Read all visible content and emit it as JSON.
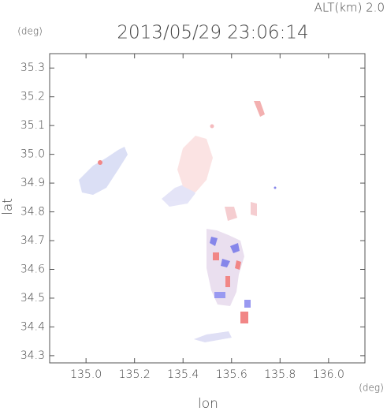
{
  "chart_data": {
    "type": "map",
    "title": "2013/05/29 23:06:14",
    "altitude_label": "ALT(km) 2.0",
    "y_unit": "(deg)",
    "x_unit": "(deg)",
    "xlabel": "lon",
    "ylabel": "lat",
    "xlim": [
      134.85,
      136.15
    ],
    "ylim": [
      34.275,
      35.35
    ],
    "xticks": [
      {
        "value": 135,
        "label": "135.0"
      },
      135.2,
      135.4,
      135.6,
      135.8,
      {
        "value": 136,
        "label": "136.0"
      }
    ],
    "yticks": [
      34.3,
      34.4,
      34.5,
      34.6,
      34.7,
      34.8,
      34.9,
      {
        "value": 35,
        "label": "35.0"
      },
      35.1,
      35.2,
      35.3
    ]
  }
}
